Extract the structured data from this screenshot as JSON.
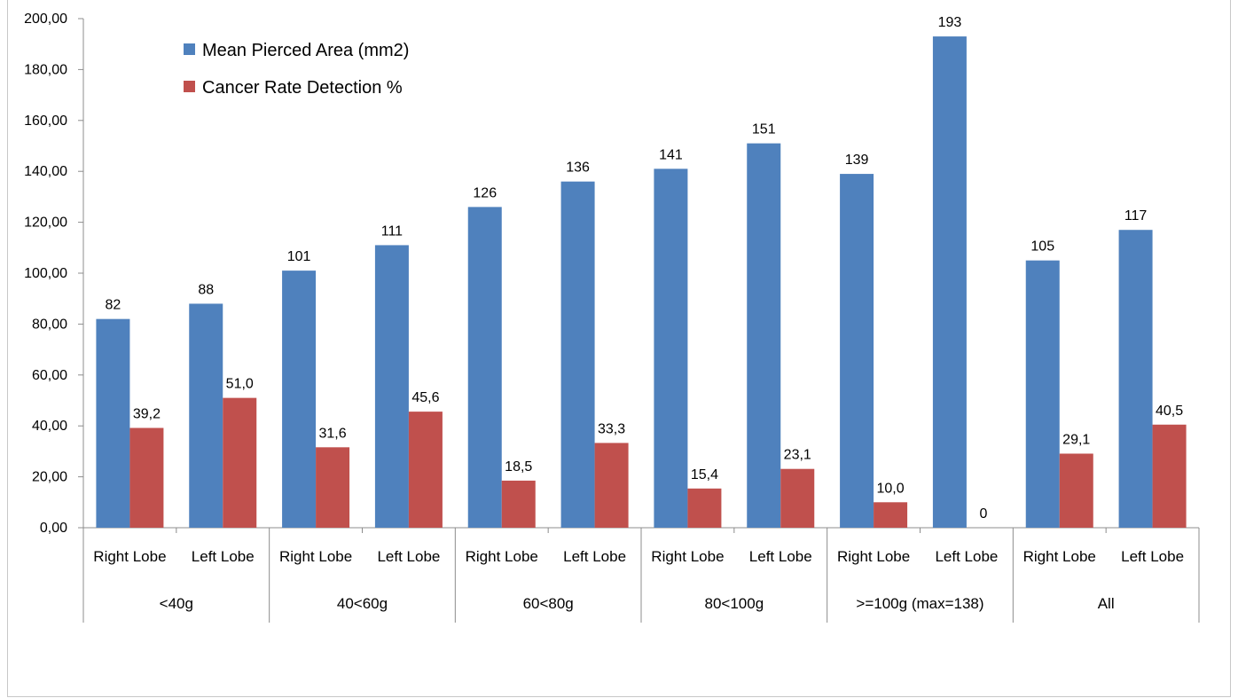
{
  "chart_data": {
    "type": "bar",
    "title": "",
    "xlabel": "",
    "ylabel": "",
    "ylim": [
      0,
      200
    ],
    "y_ticks": [
      "0,00",
      "20,00",
      "40,00",
      "60,00",
      "80,00",
      "100,00",
      "120,00",
      "140,00",
      "160,00",
      "180,00",
      "200,00"
    ],
    "groups": [
      "<40g",
      "40<60g",
      "60<80g",
      "80<100g",
      ">=100g (max=138)",
      "All"
    ],
    "categories": [
      "Right Lobe",
      "Left Lobe",
      "Right Lobe",
      "Left Lobe",
      "Right Lobe",
      "Left Lobe",
      "Right Lobe",
      "Left Lobe",
      "Right Lobe",
      "Left Lobe",
      "Right Lobe",
      "Left Lobe"
    ],
    "series": [
      {
        "name": "Mean Pierced Area (mm2)",
        "color": "#4F81BD",
        "values": [
          82,
          88,
          101,
          111,
          126,
          136,
          141,
          151,
          139,
          193,
          105,
          117
        ],
        "labels": [
          "82",
          "88",
          "101",
          "111",
          "126",
          "136",
          "141",
          "151",
          "139",
          "193",
          "105",
          "117"
        ]
      },
      {
        "name": "Cancer Rate Detection %",
        "color": "#C0504D",
        "values": [
          39.2,
          51.0,
          31.6,
          45.6,
          18.5,
          33.3,
          15.4,
          23.1,
          10.0,
          0,
          29.1,
          40.5
        ],
        "labels": [
          "39,2",
          "51,0",
          "31,6",
          "45,6",
          "18,5",
          "33,3",
          "15,4",
          "23,1",
          "10,0",
          "0",
          "29,1",
          "40,5"
        ]
      }
    ],
    "grid": false,
    "legend": "top-left"
  }
}
